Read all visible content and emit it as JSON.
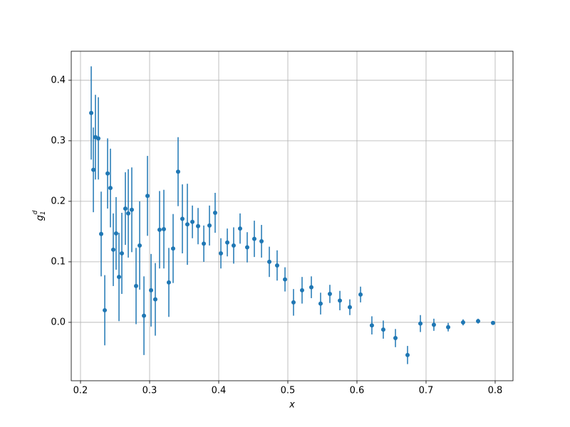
{
  "chart_data": {
    "type": "errorbar",
    "xlabel": "x",
    "ylabel": {
      "base": "g",
      "sub": "1",
      "sup": "d"
    },
    "color": "#1f77b4",
    "grid": true,
    "xlim": [
      0.1866,
      0.8258
    ],
    "ylim": [
      -0.0965,
      0.448
    ],
    "xticks": [
      0.2,
      0.3,
      0.4,
      0.5,
      0.6,
      0.7,
      0.8
    ],
    "yticks": [
      {
        "value": 0.0,
        "label": "0.0"
      },
      {
        "value": 0.1,
        "label": "0.1"
      },
      {
        "value": 0.2,
        "label": "0.2"
      },
      {
        "value": 0.3,
        "label": "0.3"
      },
      {
        "value": 0.4,
        "label": "0.4"
      }
    ],
    "x": [
      0.2155,
      0.2186,
      0.2216,
      0.2258,
      0.2299,
      0.2351,
      0.2392,
      0.2433,
      0.2474,
      0.2515,
      0.2557,
      0.2598,
      0.2649,
      0.2691,
      0.2742,
      0.2804,
      0.2856,
      0.2918,
      0.2969,
      0.3021,
      0.3082,
      0.3144,
      0.3206,
      0.3278,
      0.334,
      0.3412,
      0.3474,
      0.3546,
      0.3619,
      0.3701,
      0.3784,
      0.3866,
      0.3948,
      0.4031,
      0.4124,
      0.4216,
      0.4309,
      0.4412,
      0.4515,
      0.4619,
      0.4732,
      0.4845,
      0.4959,
      0.5082,
      0.5206,
      0.534,
      0.5474,
      0.5608,
      0.5753,
      0.5897,
      0.6052,
      0.6216,
      0.6381,
      0.6557,
      0.6732,
      0.6918,
      0.7113,
      0.732,
      0.7536,
      0.7753,
      0.7969
    ],
    "values": [
      0.346,
      0.252,
      0.306,
      0.304,
      0.146,
      0.02,
      0.246,
      0.222,
      0.12,
      0.147,
      0.075,
      0.114,
      0.188,
      0.18,
      0.186,
      0.06,
      0.127,
      0.011,
      0.209,
      0.053,
      0.038,
      0.153,
      0.154,
      0.066,
      0.122,
      0.249,
      0.171,
      0.162,
      0.166,
      0.159,
      0.13,
      0.16,
      0.181,
      0.114,
      0.132,
      0.127,
      0.155,
      0.124,
      0.138,
      0.134,
      0.1,
      0.094,
      0.071,
      0.033,
      0.053,
      0.058,
      0.031,
      0.047,
      0.036,
      0.025,
      0.046,
      -0.005,
      -0.012,
      -0.026,
      -0.054,
      -0.002,
      -0.004,
      -0.008,
      0.0,
      0.002,
      -0.001
    ],
    "errors": [
      0.077,
      0.07,
      0.07,
      0.068,
      0.07,
      0.058,
      0.058,
      0.065,
      0.06,
      0.06,
      0.073,
      0.067,
      0.06,
      0.073,
      0.07,
      0.063,
      0.073,
      0.065,
      0.066,
      0.06,
      0.06,
      0.064,
      0.065,
      0.057,
      0.057,
      0.057,
      0.057,
      0.067,
      0.027,
      0.03,
      0.03,
      0.033,
      0.033,
      0.025,
      0.023,
      0.03,
      0.025,
      0.025,
      0.03,
      0.027,
      0.025,
      0.025,
      0.02,
      0.022,
      0.022,
      0.018,
      0.018,
      0.015,
      0.016,
      0.013,
      0.013,
      0.015,
      0.015,
      0.015,
      0.015,
      0.014,
      0.01,
      0.007,
      0.005,
      0.004,
      0.002
    ]
  }
}
